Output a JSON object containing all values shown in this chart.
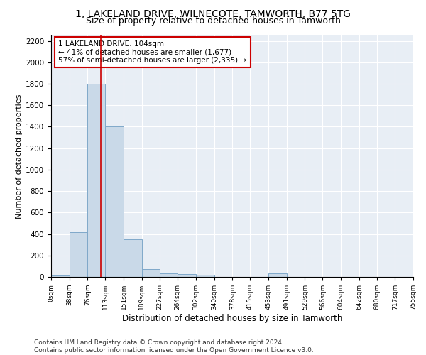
{
  "title": "1, LAKELAND DRIVE, WILNECOTE, TAMWORTH, B77 5TG",
  "subtitle": "Size of property relative to detached houses in Tamworth",
  "xlabel": "Distribution of detached houses by size in Tamworth",
  "ylabel": "Number of detached properties",
  "bar_color": "#c9d9e8",
  "bar_edge_color": "#7fa8c9",
  "background_color": "#e8eef5",
  "grid_color": "#ffffff",
  "bin_edges": [
    0,
    38,
    76,
    113,
    151,
    189,
    227,
    264,
    302,
    340,
    378,
    415,
    453,
    491,
    529,
    566,
    604,
    642,
    680,
    717,
    755
  ],
  "bin_labels": [
    "0sqm",
    "38sqm",
    "76sqm",
    "113sqm",
    "151sqm",
    "189sqm",
    "227sqm",
    "264sqm",
    "302sqm",
    "340sqm",
    "378sqm",
    "415sqm",
    "453sqm",
    "491sqm",
    "529sqm",
    "566sqm",
    "604sqm",
    "642sqm",
    "680sqm",
    "717sqm",
    "755sqm"
  ],
  "bar_heights": [
    15,
    420,
    1800,
    1400,
    350,
    75,
    30,
    25,
    20,
    0,
    0,
    0,
    30,
    0,
    0,
    0,
    0,
    0,
    0,
    0
  ],
  "ylim": [
    0,
    2250
  ],
  "yticks": [
    0,
    200,
    400,
    600,
    800,
    1000,
    1200,
    1400,
    1600,
    1800,
    2000,
    2200
  ],
  "vline_x": 104,
  "annotation_text": "1 LAKELAND DRIVE: 104sqm\n← 41% of detached houses are smaller (1,677)\n57% of semi-detached houses are larger (2,335) →",
  "annotation_box_color": "#ffffff",
  "annotation_box_edge_color": "#cc0000",
  "vline_color": "#cc0000",
  "footer_text": "Contains HM Land Registry data © Crown copyright and database right 2024.\nContains public sector information licensed under the Open Government Licence v3.0.",
  "title_fontsize": 10,
  "subtitle_fontsize": 9,
  "ylabel_fontsize": 8,
  "xlabel_fontsize": 8.5,
  "annotation_fontsize": 7.5,
  "footer_fontsize": 6.5,
  "ytick_fontsize": 7.5,
  "xtick_fontsize": 6.5
}
